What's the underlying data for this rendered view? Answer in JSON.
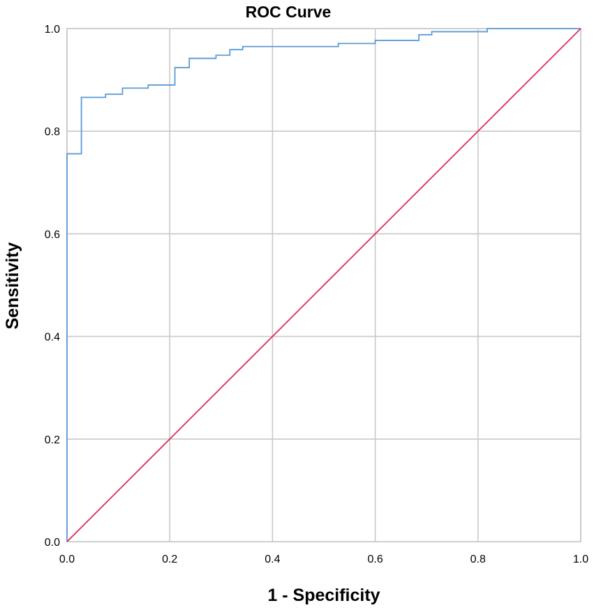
{
  "chart_data": {
    "type": "line",
    "title": "ROC Curve",
    "xlabel": "1 - Specificity",
    "ylabel": "Sensitivity",
    "xlim": [
      0,
      1
    ],
    "ylim": [
      0,
      1
    ],
    "x_ticks": [
      "0.0",
      "0.2",
      "0.4",
      "0.6",
      "0.8",
      "1.0"
    ],
    "y_ticks": [
      "0.0",
      "0.2",
      "0.4",
      "0.6",
      "0.8",
      "1.0"
    ],
    "grid": true,
    "legend": "none",
    "series": [
      {
        "color": "#5b9bd5",
        "x": [
          0.0,
          0.0,
          0.028,
          0.028,
          0.075,
          0.075,
          0.108,
          0.108,
          0.158,
          0.158,
          0.21,
          0.21,
          0.238,
          0.238,
          0.29,
          0.29,
          0.317,
          0.317,
          0.342,
          0.342,
          0.528,
          0.528,
          0.6,
          0.6,
          0.685,
          0.685,
          0.71,
          0.71,
          0.818,
          0.818,
          1.0
        ],
        "y": [
          0.0,
          0.756,
          0.756,
          0.866,
          0.866,
          0.872,
          0.872,
          0.884,
          0.884,
          0.89,
          0.89,
          0.924,
          0.924,
          0.942,
          0.942,
          0.948,
          0.948,
          0.959,
          0.959,
          0.965,
          0.965,
          0.971,
          0.971,
          0.977,
          0.977,
          0.988,
          0.988,
          0.994,
          0.994,
          1.0,
          1.0
        ]
      },
      {
        "color": "#e0285a",
        "x": [
          0.0,
          1.0
        ],
        "y": [
          0.0,
          1.0
        ]
      }
    ]
  }
}
